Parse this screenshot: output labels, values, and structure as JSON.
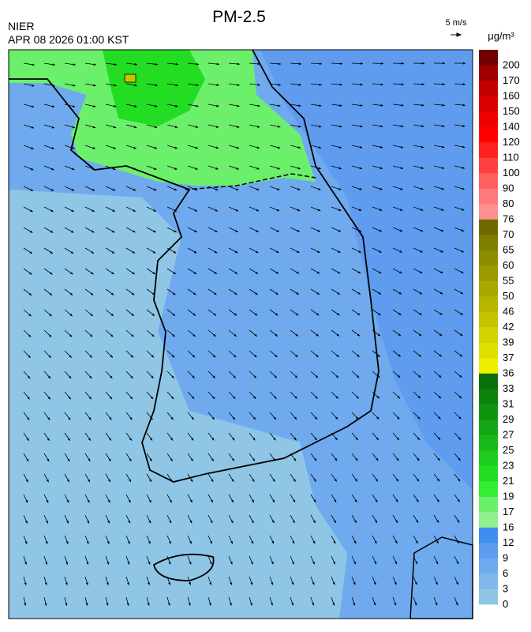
{
  "header": {
    "title": "PM-2.5",
    "agency": "NIER",
    "timestamp": "APR 08 2026 01:00 KST",
    "wind_scale": "5 m/s",
    "unit": "μg/m³"
  },
  "colorbar": {
    "labels": [
      0,
      3,
      6,
      9,
      12,
      16,
      17,
      19,
      21,
      23,
      25,
      27,
      29,
      31,
      33,
      36,
      37,
      39,
      42,
      46,
      50,
      55,
      60,
      65,
      70,
      76,
      80,
      90,
      100,
      110,
      120,
      140,
      150,
      160,
      170,
      200
    ],
    "colors": [
      "#8fc6e6",
      "#80b8ea",
      "#70aaee",
      "#5f9cf0",
      "#3d8ef0",
      "#90f090",
      "#6cf06c",
      "#33ee33",
      "#22dd22",
      "#1ecc1e",
      "#18b818",
      "#14a614",
      "#109410",
      "#0c820c",
      "#0a700a",
      "#eeee00",
      "#dede00",
      "#d2d200",
      "#c4c400",
      "#b6b600",
      "#a8a800",
      "#9a9a00",
      "#8c8c00",
      "#7e7e00",
      "#6e6a00",
      "#ff9090",
      "#ff7a7a",
      "#ff6060",
      "#ff4040",
      "#ff2020",
      "#ff0000",
      "#ee0000",
      "#d80000",
      "#c20000",
      "#a00000",
      "#700000"
    ]
  }
}
